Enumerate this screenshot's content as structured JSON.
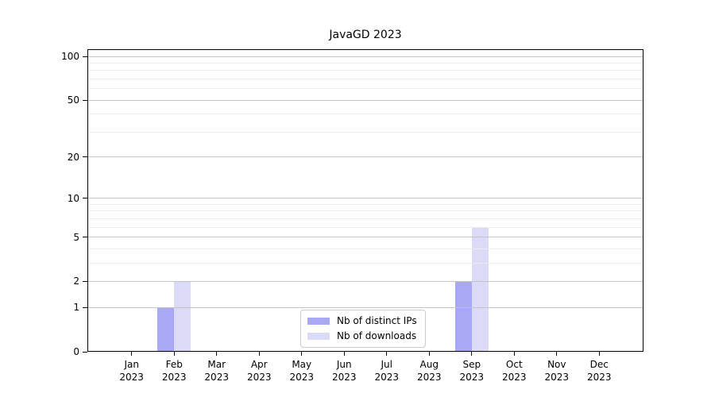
{
  "figure": {
    "background": "#ffffff"
  },
  "chart_data": {
    "type": "bar",
    "title": "JavaGD 2023",
    "categories": [
      "Jan",
      "Feb",
      "Mar",
      "Apr",
      "May",
      "Jun",
      "Jul",
      "Aug",
      "Sep",
      "Oct",
      "Nov",
      "Dec"
    ],
    "year_label": "2023",
    "series": [
      {
        "name": "Nb of distinct IPs",
        "color": "#a9a9f3",
        "values": [
          0,
          1,
          0,
          0,
          0,
          0,
          0,
          0,
          2,
          0,
          0,
          0
        ]
      },
      {
        "name": "Nb of downloads",
        "color": "#dbdbf8",
        "values": [
          0,
          2,
          0,
          0,
          0,
          0,
          0,
          0,
          6,
          0,
          0,
          0
        ]
      }
    ],
    "y_scale": "log1p",
    "ylim": [
      0,
      112
    ],
    "y_major_ticks": [
      0,
      1,
      2,
      5,
      10,
      20,
      50,
      100
    ],
    "y_minor_gridlines": [
      3,
      4,
      6,
      7,
      8,
      9,
      30,
      40,
      60,
      70,
      80,
      90
    ],
    "grid": "on",
    "legend_position": "lower center",
    "colors": {
      "grid_major": "#c3c3c3",
      "grid_minor": "#ececec",
      "spine": "#000000"
    }
  },
  "legend": {
    "items": [
      {
        "label": "Nb of distinct IPs",
        "color": "#a9a9f3"
      },
      {
        "label": "Nb of downloads",
        "color": "#dbdbf8"
      }
    ]
  }
}
